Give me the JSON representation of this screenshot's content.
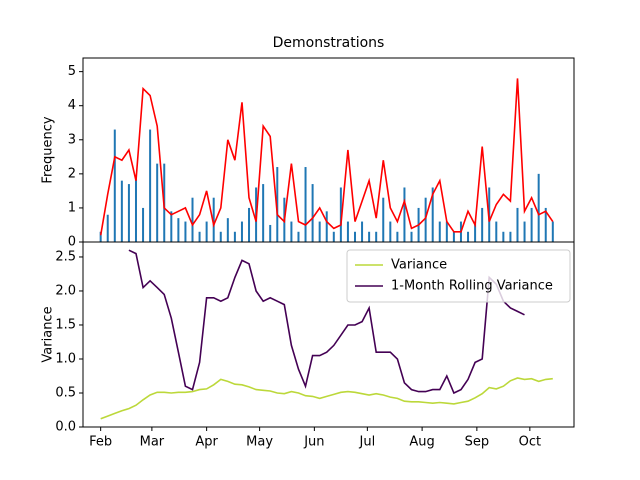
{
  "chart_data": [
    {
      "type": "combo",
      "title": "Demonstrations",
      "ylabel": "Frequency",
      "x": [
        0,
        4,
        8,
        12,
        16,
        20,
        24,
        28,
        32,
        36,
        40,
        44,
        48,
        52,
        56,
        60,
        64,
        68,
        72,
        76,
        80,
        84,
        88,
        92,
        96,
        100,
        104,
        108,
        112,
        116,
        120,
        124,
        128,
        132,
        136,
        140,
        144,
        148,
        152,
        156,
        160,
        164,
        168,
        172,
        176,
        180,
        184,
        188,
        192,
        196,
        200,
        204,
        208,
        212,
        216,
        220,
        224,
        228,
        232,
        236,
        240,
        244,
        248,
        252,
        256
      ],
      "xlim": [
        -10,
        268
      ],
      "ylim": [
        0,
        5.4
      ],
      "yticks": [
        0,
        1,
        2,
        3,
        4,
        5
      ],
      "series": [
        {
          "type": "bar",
          "color": "#1f77b4",
          "values": [
            0.3,
            0.8,
            3.3,
            1.8,
            1.7,
            1.9,
            1.0,
            3.3,
            2.3,
            2.3,
            0.9,
            0.7,
            0.6,
            1.3,
            0.3,
            0.6,
            1.3,
            0.3,
            0.7,
            0.3,
            0.6,
            1.0,
            1.6,
            1.7,
            0.5,
            2.2,
            1.3,
            0.6,
            0.3,
            2.2,
            1.7,
            0.6,
            0.9,
            0.3,
            1.6,
            0.6,
            0.3,
            0.6,
            0.3,
            0.3,
            1.3,
            0.6,
            0.3,
            1.6,
            0.3,
            1.0,
            1.3,
            1.6,
            0.6,
            0.6,
            0.3,
            0.6,
            0.3,
            0.6,
            1.0,
            1.6,
            0.6,
            0.3,
            0.3,
            1.0,
            0.6,
            1.0,
            2.0,
            1.0,
            0.6
          ]
        },
        {
          "type": "line",
          "color": "#ff0000",
          "values": [
            0.2,
            1.4,
            2.5,
            2.4,
            2.7,
            1.8,
            4.5,
            4.3,
            3.4,
            1.0,
            0.8,
            0.9,
            1.0,
            0.5,
            0.8,
            1.5,
            0.5,
            1.0,
            3.0,
            2.4,
            4.1,
            1.3,
            0.6,
            3.4,
            3.1,
            0.8,
            0.6,
            2.3,
            0.6,
            0.5,
            0.7,
            1.0,
            0.6,
            0.4,
            0.5,
            2.7,
            0.6,
            1.2,
            1.8,
            0.7,
            2.4,
            1.0,
            0.6,
            1.2,
            0.4,
            0.5,
            0.7,
            1.4,
            1.8,
            0.6,
            0.3,
            0.3,
            0.9,
            0.5,
            2.8,
            0.6,
            1.1,
            1.4,
            1.2,
            4.8,
            0.9,
            1.3,
            0.8,
            0.9,
            0.6
          ]
        }
      ]
    },
    {
      "type": "line",
      "ylabel": "Variance",
      "legend": "upper right",
      "x": [
        0,
        4,
        8,
        12,
        16,
        20,
        24,
        28,
        32,
        36,
        40,
        44,
        48,
        52,
        56,
        60,
        64,
        68,
        72,
        76,
        80,
        84,
        88,
        92,
        96,
        100,
        104,
        108,
        112,
        116,
        120,
        124,
        128,
        132,
        136,
        140,
        144,
        148,
        152,
        156,
        160,
        164,
        168,
        172,
        176,
        180,
        184,
        188,
        192,
        196,
        200,
        204,
        208,
        212,
        216,
        220,
        224,
        228,
        232,
        236,
        240,
        244,
        248,
        252,
        256
      ],
      "xlim": [
        -10,
        268
      ],
      "xticks": [
        {
          "value": 0,
          "label": "Feb"
        },
        {
          "value": 29,
          "label": "Mar"
        },
        {
          "value": 60,
          "label": "Apr"
        },
        {
          "value": 90,
          "label": "May"
        },
        {
          "value": 121,
          "label": "Jun"
        },
        {
          "value": 151,
          "label": "Jul"
        },
        {
          "value": 182,
          "label": "Aug"
        },
        {
          "value": 213,
          "label": "Sep"
        },
        {
          "value": 243,
          "label": "Oct"
        }
      ],
      "ylim": [
        0,
        2.72
      ],
      "yticks": [
        {
          "value": 0,
          "label": "0.0"
        },
        0.5,
        {
          "value": 1,
          "label": "1.0"
        },
        1.5,
        {
          "value": 2,
          "label": "2.0"
        },
        2.5
      ],
      "series": [
        {
          "name": "Variance",
          "color": "#bcd83a",
          "values": [
            0.12,
            0.16,
            0.2,
            0.24,
            0.27,
            0.32,
            0.4,
            0.47,
            0.51,
            0.51,
            0.5,
            0.51,
            0.51,
            0.52,
            0.55,
            0.56,
            0.62,
            0.7,
            0.67,
            0.63,
            0.62,
            0.59,
            0.55,
            0.54,
            0.53,
            0.5,
            0.49,
            0.52,
            0.5,
            0.46,
            0.45,
            0.42,
            0.45,
            0.48,
            0.51,
            0.52,
            0.51,
            0.49,
            0.47,
            0.49,
            0.47,
            0.44,
            0.42,
            0.38,
            0.37,
            0.37,
            0.36,
            0.35,
            0.36,
            0.35,
            0.34,
            0.36,
            0.38,
            0.43,
            0.49,
            0.58,
            0.56,
            0.6,
            0.68,
            0.72,
            0.7,
            0.71,
            0.67,
            0.7,
            0.71
          ]
        },
        {
          "name": "1-Month Rolling Variance",
          "color": "#440154",
          "values": [
            null,
            null,
            null,
            null,
            2.6,
            2.55,
            2.05,
            2.15,
            2.05,
            1.95,
            1.6,
            1.1,
            0.6,
            0.55,
            0.95,
            1.9,
            1.9,
            1.85,
            1.9,
            2.2,
            2.45,
            2.4,
            2.0,
            1.85,
            1.9,
            1.85,
            1.8,
            1.2,
            0.85,
            0.6,
            1.05,
            1.05,
            1.1,
            1.2,
            1.35,
            1.5,
            1.5,
            1.55,
            1.75,
            1.1,
            1.1,
            1.1,
            1.0,
            0.65,
            0.55,
            0.52,
            0.52,
            0.55,
            0.55,
            0.75,
            0.5,
            0.55,
            0.7,
            0.95,
            1.0,
            2.2,
            2.1,
            1.85,
            1.75,
            1.7,
            1.65,
            null,
            null,
            null,
            null
          ]
        }
      ]
    }
  ]
}
